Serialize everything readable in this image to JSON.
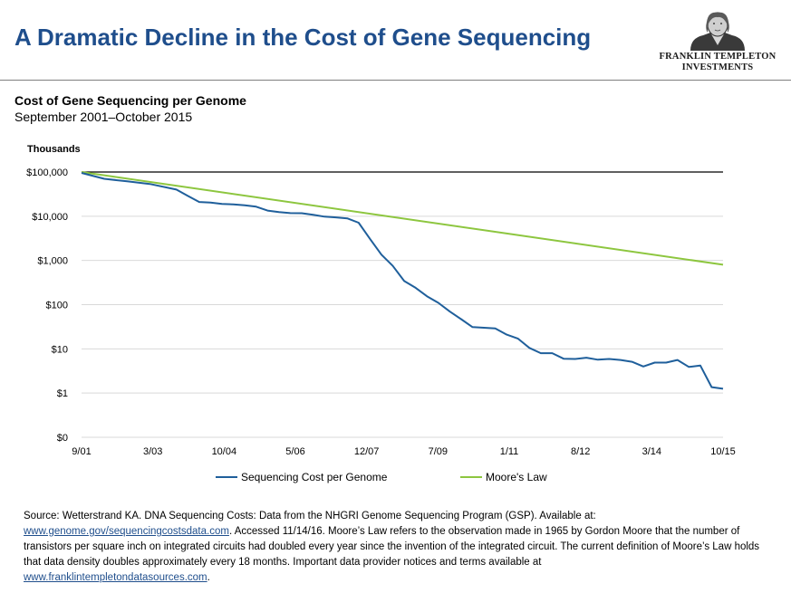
{
  "header": {
    "title": "A Dramatic Decline in the Cost of Gene Sequencing",
    "logo_line1": "FRANKLIN TEMPLETON",
    "logo_line2": "INVESTMENTS"
  },
  "colors": {
    "title": "#1f4e8c",
    "sequencing_series": "#1f5f9b",
    "moores_law_series": "#8dc63f",
    "link": "#1f4e8c"
  },
  "chart_data": {
    "type": "line",
    "title": "Cost of Gene Sequencing per Genome",
    "subtitle": "September 2001–October 2015",
    "y_unit_label": "Thousands",
    "y_scale": "log",
    "y_ticks": [
      {
        "value": 0.1,
        "label": "$0"
      },
      {
        "value": 1,
        "label": "$1"
      },
      {
        "value": 10,
        "label": "$10"
      },
      {
        "value": 100,
        "label": "$100"
      },
      {
        "value": 1000,
        "label": "$1,000"
      },
      {
        "value": 10000,
        "label": "$10,000"
      },
      {
        "value": 100000,
        "label": "$100,000"
      }
    ],
    "x_range": [
      "2001-09",
      "2015-10"
    ],
    "x_ticks": [
      "9/01",
      "3/03",
      "10/04",
      "5/06",
      "12/07",
      "7/09",
      "1/11",
      "8/12",
      "3/14",
      "10/15"
    ],
    "reference_line": {
      "value": 100000,
      "color": "#000000"
    },
    "legend_position": "bottom",
    "grid": "horizontal",
    "series": [
      {
        "name": "Sequencing Cost per Genome",
        "points": [
          [
            "2001-09",
            95263
          ],
          [
            "2002-03",
            70175
          ],
          [
            "2002-09",
            61448
          ],
          [
            "2003-03",
            53751
          ],
          [
            "2003-10",
            40154
          ],
          [
            "2004-01",
            28780
          ],
          [
            "2004-04",
            20963
          ],
          [
            "2004-07",
            20442
          ],
          [
            "2004-10",
            19056
          ],
          [
            "2005-01",
            18519
          ],
          [
            "2005-04",
            17760
          ],
          [
            "2005-07",
            16400
          ],
          [
            "2005-10",
            13402
          ],
          [
            "2006-01",
            12400
          ],
          [
            "2006-04",
            11737
          ],
          [
            "2006-07",
            11700
          ],
          [
            "2006-10",
            10737
          ],
          [
            "2007-01",
            9800
          ],
          [
            "2007-04",
            9408
          ],
          [
            "2007-07",
            8927
          ],
          [
            "2007-10",
            7148
          ],
          [
            "2008-01",
            3063
          ],
          [
            "2008-04",
            1352
          ],
          [
            "2008-07",
            752
          ],
          [
            "2008-10",
            342
          ],
          [
            "2009-01",
            240
          ],
          [
            "2009-04",
            155
          ],
          [
            "2009-07",
            110
          ],
          [
            "2009-10",
            70
          ],
          [
            "2010-01",
            47
          ],
          [
            "2010-04",
            31
          ],
          [
            "2010-07",
            30
          ],
          [
            "2010-10",
            29
          ],
          [
            "2011-01",
            21
          ],
          [
            "2011-04",
            17
          ],
          [
            "2011-07",
            10.5
          ],
          [
            "2011-10",
            8
          ],
          [
            "2012-01",
            8
          ],
          [
            "2012-04",
            6
          ],
          [
            "2012-07",
            5.9
          ],
          [
            "2012-10",
            6.3
          ],
          [
            "2013-01",
            5.7
          ],
          [
            "2013-04",
            5.9
          ],
          [
            "2013-07",
            5.6
          ],
          [
            "2013-10",
            5.1
          ],
          [
            "2014-01",
            4.0
          ],
          [
            "2014-04",
            4.9
          ],
          [
            "2014-07",
            4.9
          ],
          [
            "2014-10",
            5.6
          ],
          [
            "2015-01",
            3.9
          ],
          [
            "2015-04",
            4.2
          ],
          [
            "2015-07",
            1.36
          ],
          [
            "2015-10",
            1.25
          ]
        ]
      },
      {
        "name": "Moore's Law",
        "points": [
          [
            "2001-09",
            100000
          ],
          [
            "2015-10",
            800
          ]
        ]
      }
    ]
  },
  "source": {
    "part1": "Source: Wetterstrand KA. DNA Sequencing Costs: Data from the NHGRI Genome Sequencing Program (GSP). Available at:",
    "link1": "www.genome.gov/sequencingcostsdata.com",
    "part2": ". Accessed 11/14/16. Moore’s Law refers to the observation made in 1965 by Gordon Moore that the number of transistors per square inch on integrated circuits had doubled every year since the invention of the integrated circuit. The current definition of Moore’s Law holds that data density doubles approximately every  18 months. Important data provider notices and terms available at",
    "link2": "www.franklintempletondatasources.com",
    "part3": "."
  }
}
